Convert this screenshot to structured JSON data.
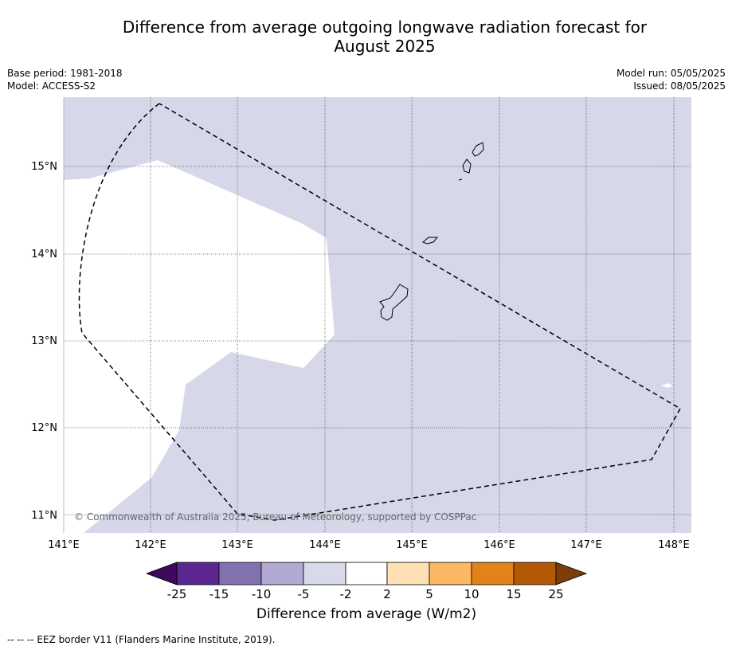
{
  "header": {
    "title_line1": "Difference from average outgoing longwave radiation forecast for",
    "title_line2": "August 2025",
    "base_period": "Base period: 1981-2018",
    "model": "Model: ACCESS-S2",
    "model_run": "Model run: 05/05/2025",
    "issued": "Issued: 08/05/2025"
  },
  "map": {
    "lon_labels": [
      "141°E",
      "142°E",
      "143°E",
      "144°E",
      "145°E",
      "146°E",
      "147°E",
      "148°E"
    ],
    "lat_labels": [
      "15°N",
      "14°N",
      "13°N",
      "12°N",
      "11°N"
    ],
    "copyright": "© Commonwealth of Australia 2025, Bureau of Meteorology, supported by COSPPac",
    "fill_colors": {
      "neutral_light_purple": "#d6d7e8",
      "near_zero_white": "#ffffff"
    }
  },
  "colorbar": {
    "tick_labels": [
      "-25",
      "-15",
      "-10",
      "-5",
      "-2",
      "2",
      "5",
      "10",
      "15",
      "25"
    ],
    "colors": [
      "#3f0a5d",
      "#5b2690",
      "#8272b0",
      "#b1a9d2",
      "#d9d9ec",
      "#ffffff",
      "#fde0b3",
      "#fbb762",
      "#e1821a",
      "#b35806",
      "#7d3c08"
    ],
    "title": "Difference from average (W/m2)"
  },
  "footer": {
    "legend_text": "-- -- -- EEZ border V11 (Flanders Marine Institute, 2019)."
  }
}
